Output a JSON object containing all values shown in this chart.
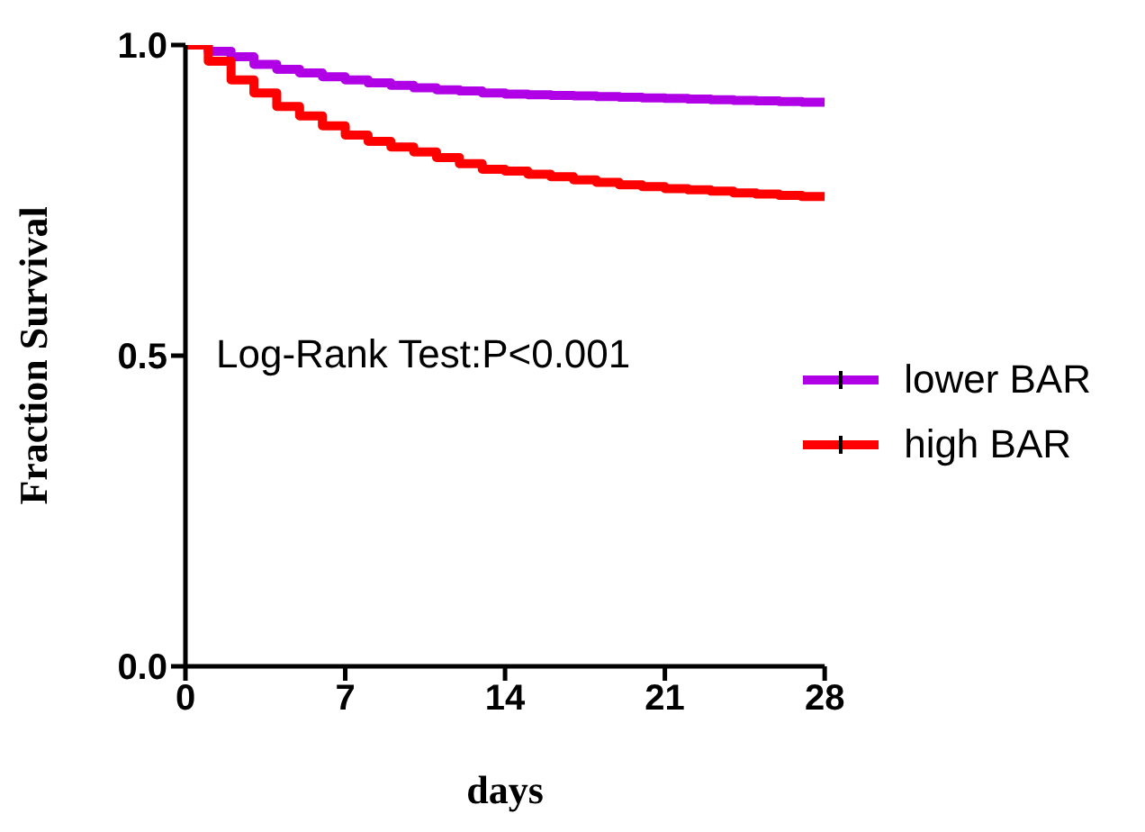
{
  "chart_data": {
    "type": "step",
    "xlabel": "days",
    "ylabel": "Fraction Survival",
    "x": [
      0,
      1,
      2,
      3,
      4,
      5,
      6,
      7,
      8,
      9,
      10,
      11,
      12,
      13,
      14,
      15,
      16,
      17,
      18,
      19,
      20,
      21,
      22,
      23,
      24,
      25,
      26,
      27,
      28
    ],
    "series": [
      {
        "name": "lower BAR",
        "color": "#b000e6",
        "values": [
          1,
          0.99,
          0.981,
          0.969,
          0.961,
          0.955,
          0.949,
          0.944,
          0.939,
          0.935,
          0.931,
          0.928,
          0.926,
          0.923,
          0.921,
          0.92,
          0.919,
          0.918,
          0.917,
          0.916,
          0.915,
          0.914,
          0.913,
          0.912,
          0.911,
          0.91,
          0.909,
          0.908,
          0.907
        ]
      },
      {
        "name": "high BAR",
        "color": "#ff0000",
        "values": [
          1,
          0.974,
          0.944,
          0.923,
          0.901,
          0.886,
          0.87,
          0.855,
          0.845,
          0.836,
          0.828,
          0.819,
          0.809,
          0.8,
          0.797,
          0.792,
          0.788,
          0.783,
          0.779,
          0.775,
          0.772,
          0.769,
          0.767,
          0.765,
          0.762,
          0.76,
          0.758,
          0.756,
          0.754
        ]
      }
    ],
    "xlim": [
      0,
      28
    ],
    "xticks": [
      0,
      7,
      14,
      21,
      28
    ],
    "ylim": [
      0,
      1
    ],
    "yticks": [
      {
        "value": 0,
        "label": "0.0"
      },
      {
        "value": 0.5,
        "label": "0.5"
      },
      {
        "value": 1,
        "label": "1.0"
      }
    ],
    "annotations": [
      "Log-Rank Test:P<0.001"
    ],
    "legend": "right",
    "grid": false,
    "marker": "none",
    "line_style": "solid"
  }
}
